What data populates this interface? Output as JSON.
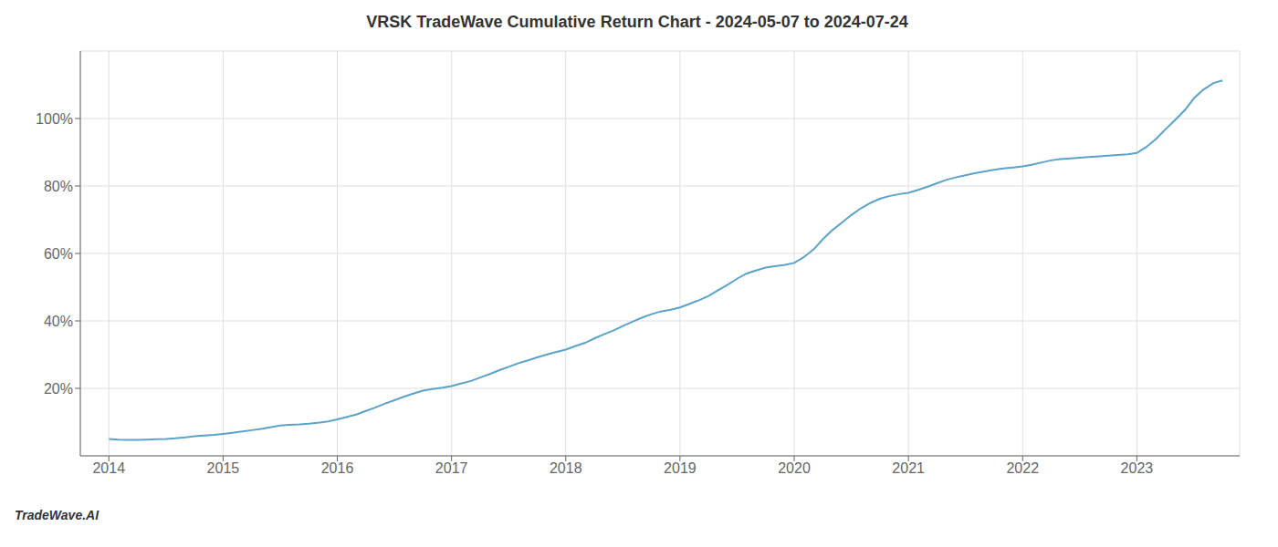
{
  "chart_data": {
    "type": "line",
    "title": "VRSK TradeWave Cumulative Return Chart - 2024-05-07 to 2024-07-24",
    "annotations": [
      "TradeWave.AI"
    ],
    "x": [
      2014.0,
      2014.08,
      2014.17,
      2014.25,
      2014.33,
      2014.42,
      2014.5,
      2014.58,
      2014.67,
      2014.75,
      2014.83,
      2014.92,
      2015.0,
      2015.08,
      2015.17,
      2015.25,
      2015.33,
      2015.42,
      2015.5,
      2015.58,
      2015.67,
      2015.75,
      2015.83,
      2015.92,
      2016.0,
      2016.08,
      2016.17,
      2016.25,
      2016.33,
      2016.42,
      2016.5,
      2016.58,
      2016.67,
      2016.75,
      2016.83,
      2016.92,
      2017.0,
      2017.08,
      2017.17,
      2017.25,
      2017.33,
      2017.42,
      2017.5,
      2017.58,
      2017.67,
      2017.75,
      2017.83,
      2017.92,
      2018.0,
      2018.08,
      2018.17,
      2018.25,
      2018.33,
      2018.42,
      2018.5,
      2018.58,
      2018.67,
      2018.75,
      2018.83,
      2018.92,
      2019.0,
      2019.08,
      2019.17,
      2019.25,
      2019.33,
      2019.42,
      2019.5,
      2019.58,
      2019.67,
      2019.75,
      2019.83,
      2019.92,
      2020.0,
      2020.08,
      2020.17,
      2020.25,
      2020.33,
      2020.42,
      2020.5,
      2020.58,
      2020.67,
      2020.75,
      2020.83,
      2020.92,
      2021.0,
      2021.08,
      2021.17,
      2021.25,
      2021.33,
      2021.42,
      2021.5,
      2021.58,
      2021.67,
      2021.75,
      2021.83,
      2021.92,
      2022.0,
      2022.08,
      2022.17,
      2022.25,
      2022.33,
      2022.42,
      2022.5,
      2022.58,
      2022.67,
      2022.75,
      2022.83,
      2022.92,
      2023.0,
      2023.08,
      2023.17,
      2023.25,
      2023.33,
      2023.42,
      2023.5,
      2023.58,
      2023.67,
      2023.75
    ],
    "values": [
      0.05,
      0.048,
      0.047,
      0.047,
      0.048,
      0.049,
      0.05,
      0.052,
      0.055,
      0.058,
      0.06,
      0.062,
      0.065,
      0.068,
      0.072,
      0.076,
      0.08,
      0.085,
      0.09,
      0.092,
      0.093,
      0.095,
      0.098,
      0.102,
      0.108,
      0.115,
      0.123,
      0.133,
      0.143,
      0.155,
      0.165,
      0.175,
      0.185,
      0.193,
      0.198,
      0.202,
      0.207,
      0.214,
      0.222,
      0.232,
      0.242,
      0.254,
      0.264,
      0.274,
      0.283,
      0.292,
      0.3,
      0.308,
      0.315,
      0.325,
      0.335,
      0.348,
      0.36,
      0.372,
      0.385,
      0.397,
      0.41,
      0.42,
      0.428,
      0.433,
      0.44,
      0.45,
      0.462,
      0.474,
      0.49,
      0.508,
      0.525,
      0.54,
      0.55,
      0.558,
      0.562,
      0.566,
      0.572,
      0.588,
      0.612,
      0.642,
      0.668,
      0.692,
      0.714,
      0.733,
      0.75,
      0.762,
      0.77,
      0.776,
      0.78,
      0.788,
      0.798,
      0.808,
      0.818,
      0.826,
      0.832,
      0.838,
      0.843,
      0.848,
      0.852,
      0.855,
      0.858,
      0.863,
      0.87,
      0.876,
      0.88,
      0.882,
      0.884,
      0.886,
      0.888,
      0.89,
      0.892,
      0.894,
      0.898,
      0.915,
      0.94,
      0.968,
      0.994,
      1.025,
      1.06,
      1.085,
      1.105,
      1.113
    ],
    "color": "#5ba3c9",
    "xlim": [
      2013.75,
      2023.9
    ],
    "xticks": [
      2014,
      2015,
      2016,
      2017,
      2018,
      2019,
      2020,
      2021,
      2022,
      2023
    ],
    "ylim": [
      0.0,
      1.2
    ],
    "yticks": [
      {
        "value": 0.2,
        "label": "20%"
      },
      {
        "value": 0.4,
        "label": "40%"
      },
      {
        "value": 0.6,
        "label": "60%"
      },
      {
        "value": 0.8,
        "label": "80%"
      },
      {
        "value": 1.0,
        "label": "100%"
      }
    ],
    "grid": true
  }
}
